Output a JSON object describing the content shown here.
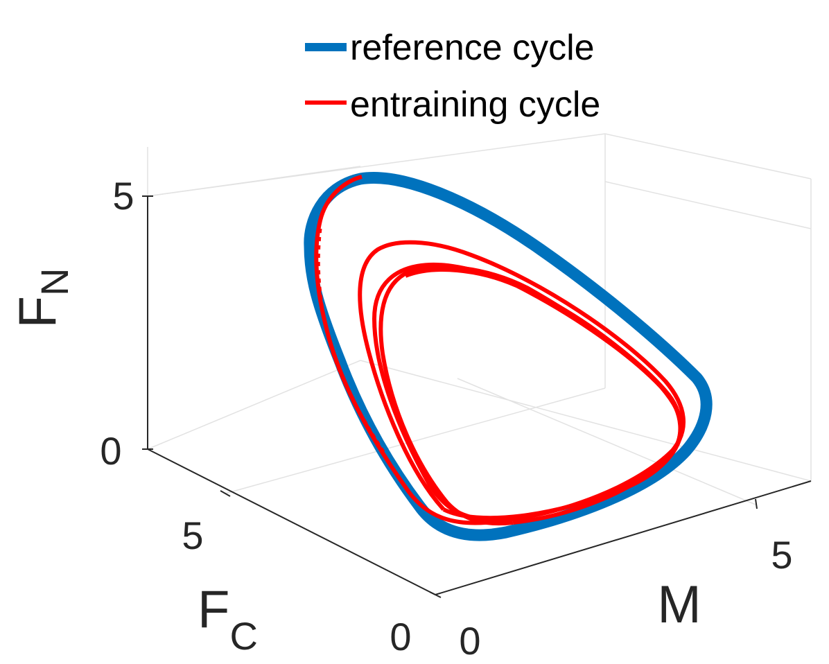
{
  "chart_data": {
    "type": "line",
    "projection": "3d",
    "axes": {
      "x": {
        "label": "M",
        "ticks": [
          "0",
          "5"
        ]
      },
      "y": {
        "label": "F",
        "label_subscript": "C",
        "ticks": [
          "0",
          "5"
        ]
      },
      "z": {
        "label": "F",
        "label_subscript": "N",
        "ticks": [
          "0",
          "5"
        ]
      }
    },
    "grid": true,
    "legend": {
      "position": "top",
      "entries": [
        "reference cycle",
        "entraining cycle"
      ]
    },
    "series": [
      {
        "name": "reference cycle",
        "color": "#0072BD",
        "style": "thick",
        "loops": 1
      },
      {
        "name": "entraining cycle",
        "color": "#FF0000",
        "style": "thin",
        "loops": 3
      }
    ]
  }
}
